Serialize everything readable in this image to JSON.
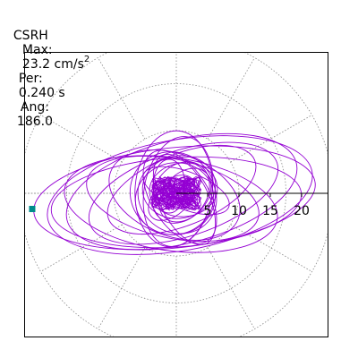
{
  "header": {
    "station": "CSRH",
    "max_label": "Max:",
    "max_value": "23.2 cm/s",
    "max_exp": "2",
    "period_label": "Per:",
    "period_value": "0.240 s",
    "angle_label": "Ang:",
    "angle_value": "186.0"
  },
  "chart_data": {
    "type": "polar-hodogram",
    "title": "CSRH  Max: 23.2 cm/s2  Per: 0.240 s  Ang: 186.0",
    "max_amplitude": 23.2,
    "max_angle_deg": 186.0,
    "period_s": 0.24,
    "radial_ticks": [
      5,
      10,
      15,
      20
    ],
    "radial_tick_labels": [
      "5",
      "10",
      "15",
      "20"
    ],
    "radial_max": 25,
    "grid": true,
    "colors": {
      "trace": "#9400d3",
      "max_marker": "#008b8b",
      "grid": "#888888",
      "axis": "#000000"
    }
  }
}
